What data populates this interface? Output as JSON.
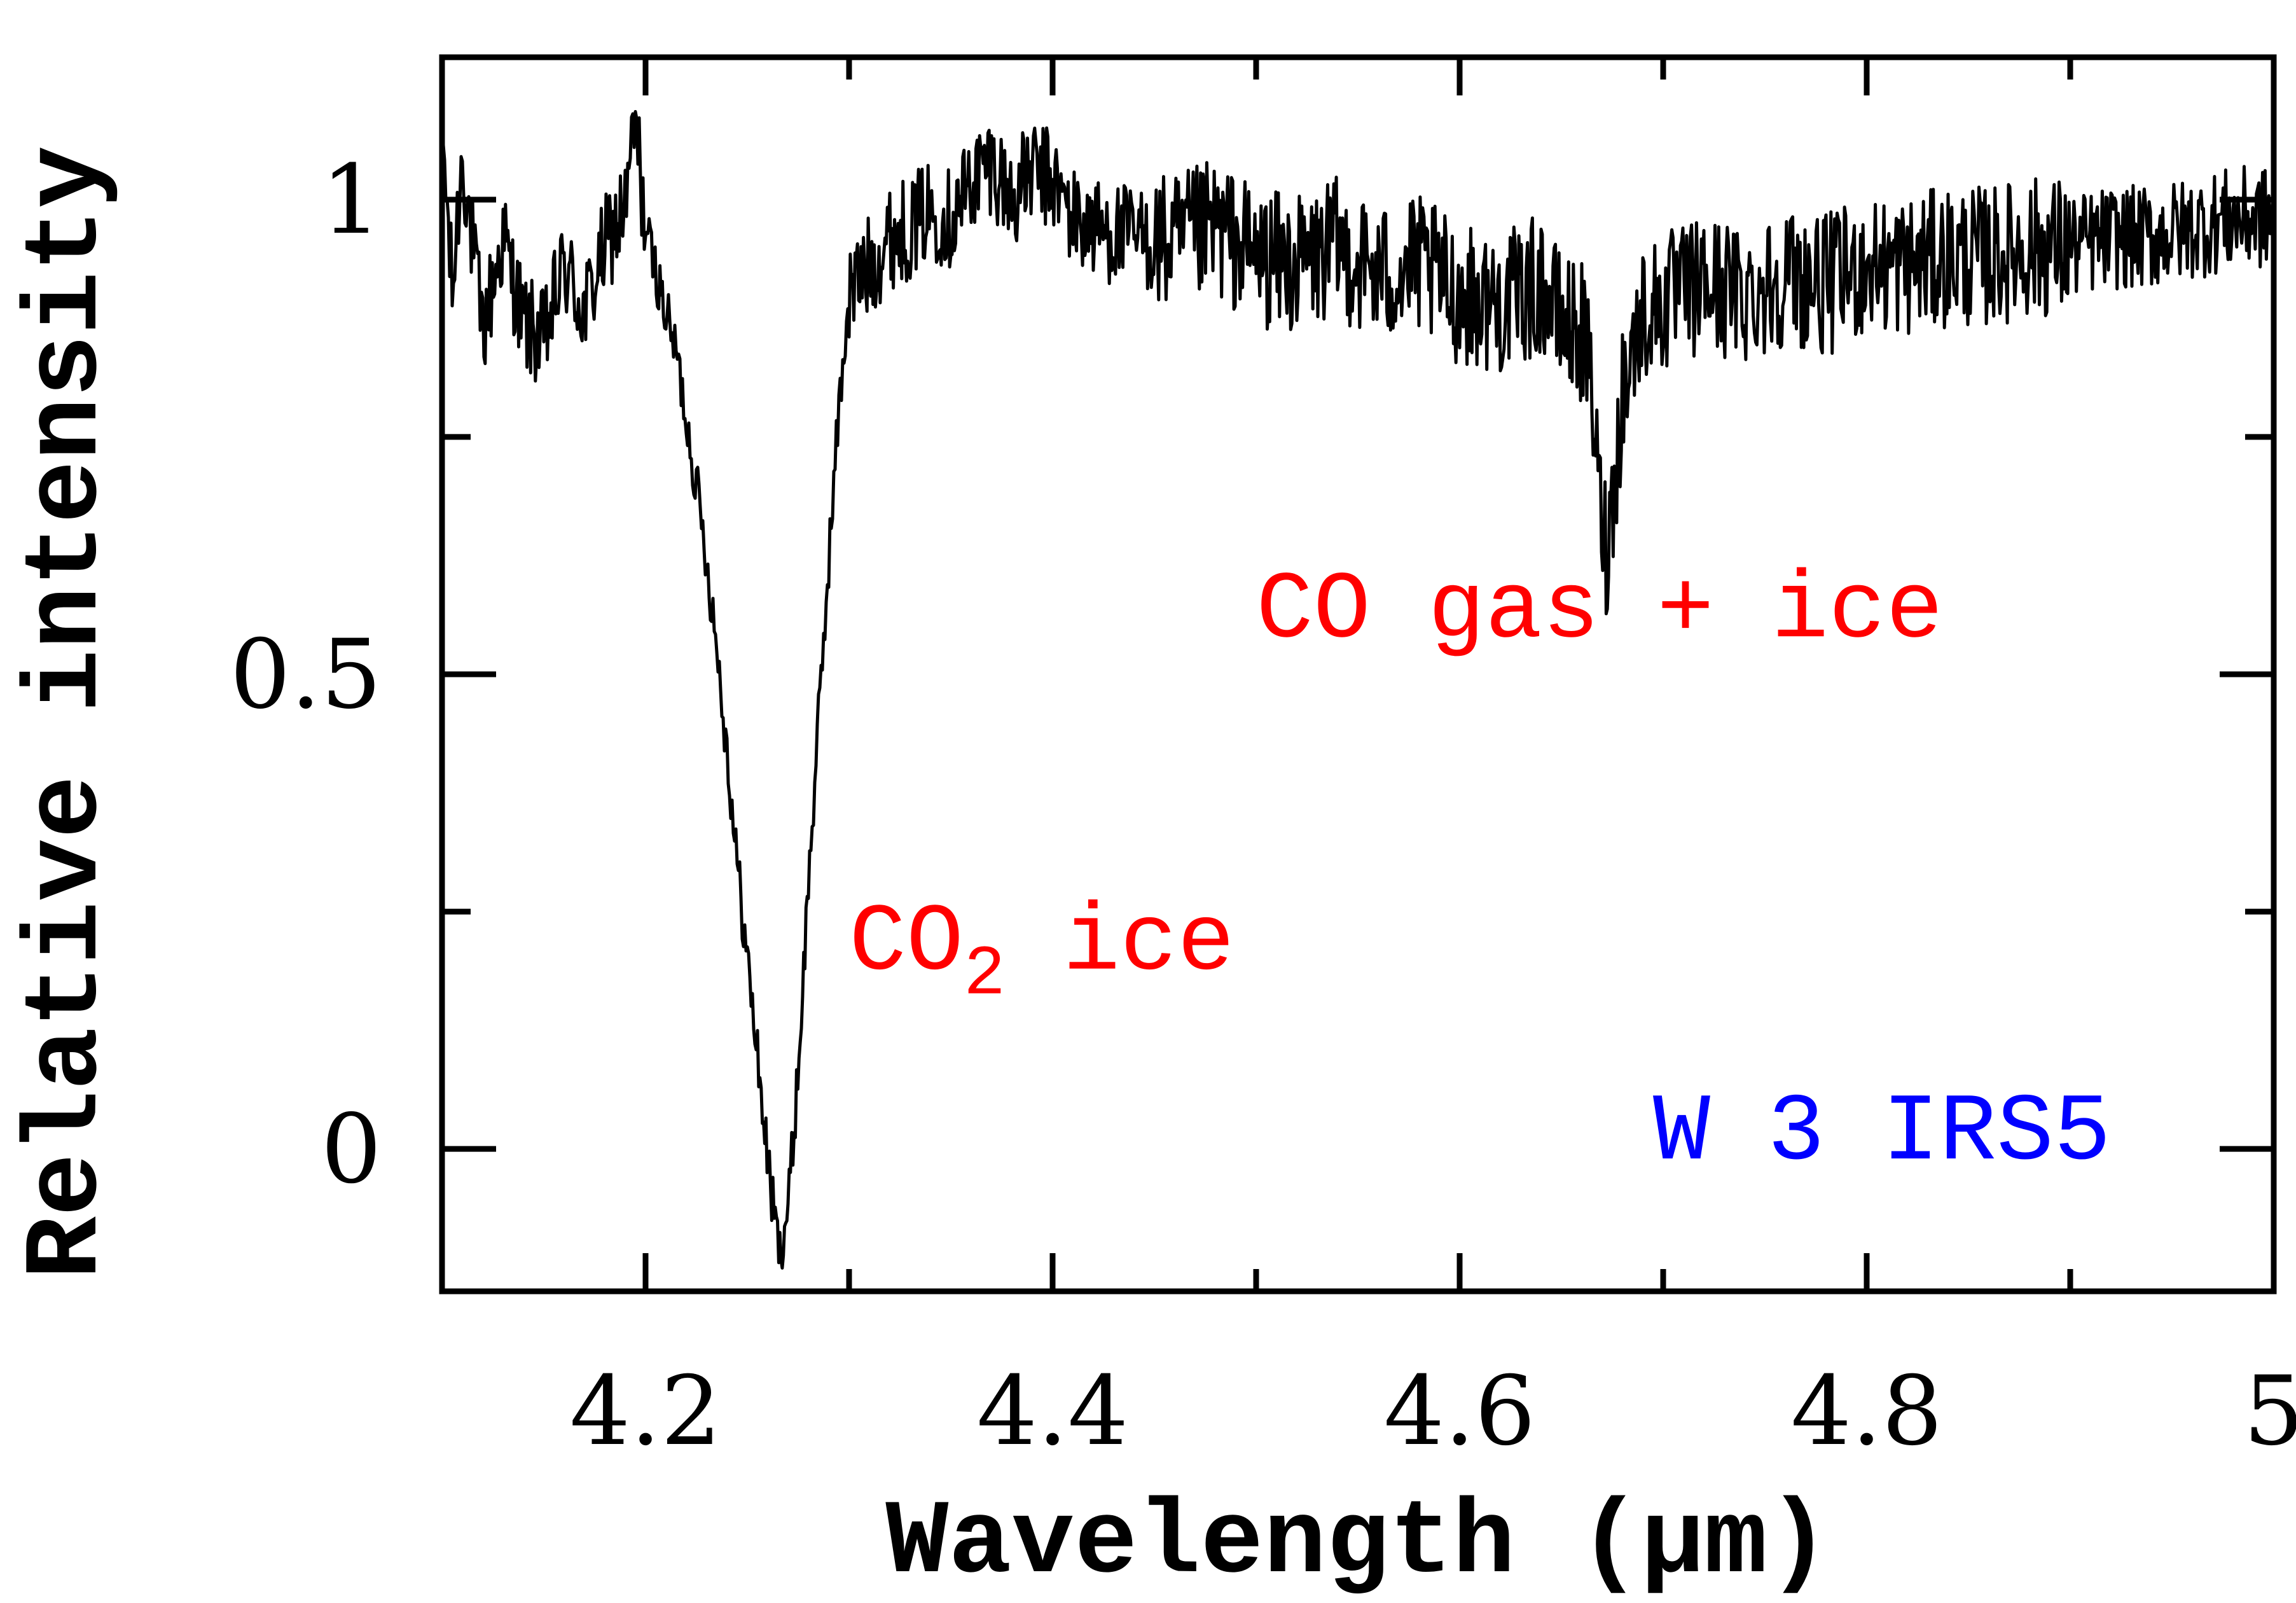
{
  "chart_data": {
    "type": "line",
    "title": "",
    "xlabel": "Wavelength (μm)",
    "ylabel": "Relative intensity",
    "xlim": [
      4.1,
      5.0
    ],
    "ylim": [
      -0.15,
      1.15
    ],
    "x_ticks": [
      {
        "value": 4.2,
        "label": "4.2"
      },
      {
        "value": 4.4,
        "label": "4.4"
      },
      {
        "value": 4.6,
        "label": "4.6"
      },
      {
        "value": 4.8,
        "label": "4.8"
      },
      {
        "value": 5.0,
        "label": "5"
      }
    ],
    "x_minor_ticks": [
      4.3,
      4.5,
      4.7,
      4.9
    ],
    "y_ticks": [
      {
        "value": 0,
        "label": "0"
      },
      {
        "value": 0.5,
        "label": "0.5"
      },
      {
        "value": 1,
        "label": "1"
      }
    ],
    "y_minor_ticks": [
      0.25,
      0.75
    ],
    "grid": false,
    "legend": "none",
    "series": [
      {
        "color": "#000000",
        "x": [
          4.1,
          4.105,
          4.11,
          4.115,
          4.12,
          4.13,
          4.14,
          4.15,
          4.16,
          4.17,
          4.18,
          4.19,
          4.195,
          4.2,
          4.21,
          4.215,
          4.22,
          4.225,
          4.23,
          4.235,
          4.24,
          4.245,
          4.25,
          4.255,
          4.258,
          4.262,
          4.266,
          4.27,
          4.273,
          4.276,
          4.28,
          4.285,
          4.29,
          4.295,
          4.3,
          4.31,
          4.32,
          4.33,
          4.34,
          4.35,
          4.36,
          4.37,
          4.38,
          4.39,
          4.4,
          4.41,
          4.42,
          4.44,
          4.46,
          4.48,
          4.5,
          4.52,
          4.54,
          4.56,
          4.58,
          4.6,
          4.62,
          4.64,
          4.65,
          4.66,
          4.665,
          4.668,
          4.672,
          4.676,
          4.68,
          4.69,
          4.7,
          4.72,
          4.74,
          4.76,
          4.78,
          4.8,
          4.82,
          4.84,
          4.86,
          4.88,
          4.9,
          4.92,
          4.94,
          4.96,
          4.98,
          5.0
        ],
        "y": [
          1.08,
          0.9,
          1.05,
          0.95,
          0.86,
          0.96,
          0.87,
          0.85,
          0.93,
          0.88,
          0.95,
          0.99,
          1.08,
          0.97,
          0.88,
          0.84,
          0.77,
          0.7,
          0.62,
          0.53,
          0.42,
          0.3,
          0.2,
          0.1,
          0.03,
          -0.05,
          -0.11,
          -0.06,
          0.02,
          0.12,
          0.28,
          0.45,
          0.62,
          0.78,
          0.9,
          0.93,
          0.96,
          0.97,
          0.99,
          0.98,
          1.02,
          1.04,
          1.0,
          1.03,
          1.02,
          0.98,
          0.97,
          0.96,
          0.95,
          0.97,
          0.94,
          0.93,
          0.95,
          0.92,
          0.93,
          0.9,
          0.89,
          0.91,
          0.87,
          0.86,
          0.8,
          0.7,
          0.63,
          0.7,
          0.8,
          0.88,
          0.89,
          0.91,
          0.9,
          0.92,
          0.91,
          0.93,
          0.93,
          0.94,
          0.94,
          0.95,
          0.95,
          0.96,
          0.96,
          0.97,
          0.98,
          0.98
        ]
      }
    ],
    "annotations": [
      {
        "parts": [
          {
            "text": "CO"
          },
          {
            "text": "2",
            "sub": true
          },
          {
            "text": " ice"
          }
        ],
        "color": "#ff0000",
        "at": [
          4.3,
          0.19
        ]
      },
      {
        "parts": [
          {
            "text": "CO gas + ice"
          }
        ],
        "color": "#ff0000",
        "at": [
          4.5,
          0.54
        ]
      },
      {
        "parts": [
          {
            "text": "W 3 IRS5"
          }
        ],
        "color": "#0000ff",
        "at": [
          4.695,
          -0.01
        ]
      }
    ]
  }
}
